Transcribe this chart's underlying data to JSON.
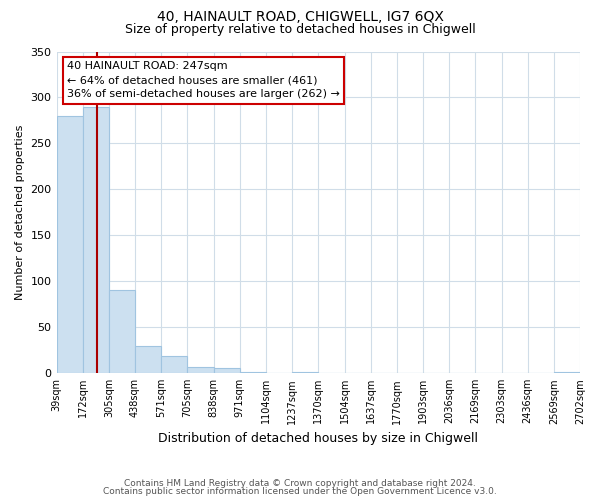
{
  "title": "40, HAINAULT ROAD, CHIGWELL, IG7 6QX",
  "subtitle": "Size of property relative to detached houses in Chigwell",
  "xlabel": "Distribution of detached houses by size in Chigwell",
  "ylabel": "Number of detached properties",
  "bar_values": [
    280,
    290,
    90,
    30,
    19,
    7,
    6,
    1,
    0,
    1,
    0,
    0,
    0,
    0,
    0,
    0,
    0,
    0,
    0,
    1
  ],
  "bar_edges": [
    39,
    172,
    305,
    438,
    571,
    705,
    838,
    971,
    1104,
    1237,
    1370,
    1504,
    1637,
    1770,
    1903,
    2036,
    2169,
    2303,
    2436,
    2569,
    2702
  ],
  "tick_labels": [
    "39sqm",
    "172sqm",
    "305sqm",
    "438sqm",
    "571sqm",
    "705sqm",
    "838sqm",
    "971sqm",
    "1104sqm",
    "1237sqm",
    "1370sqm",
    "1504sqm",
    "1637sqm",
    "1770sqm",
    "1903sqm",
    "2036sqm",
    "2169sqm",
    "2303sqm",
    "2436sqm",
    "2569sqm",
    "2702sqm"
  ],
  "bar_facecolor": "#cce0f0",
  "bar_edgecolor": "#a0c4e0",
  "grid_color": "#d0dde8",
  "property_line_x": 247,
  "property_line_color": "#aa0000",
  "annotation_title": "40 HAINAULT ROAD: 247sqm",
  "annotation_line1": "← 64% of detached houses are smaller (461)",
  "annotation_line2": "36% of semi-detached houses are larger (262) →",
  "annotation_box_facecolor": "#ffffff",
  "annotation_border_color": "#cc0000",
  "ylim": [
    0,
    350
  ],
  "yticks": [
    0,
    50,
    100,
    150,
    200,
    250,
    300,
    350
  ],
  "footer1": "Contains HM Land Registry data © Crown copyright and database right 2024.",
  "footer2": "Contains public sector information licensed under the Open Government Licence v3.0.",
  "background_color": "#ffffff",
  "plot_background_color": "#ffffff",
  "title_fontsize": 10,
  "subtitle_fontsize": 9,
  "ylabel_fontsize": 8,
  "xlabel_fontsize": 9,
  "tick_fontsize": 7,
  "annotation_fontsize": 8,
  "footer_fontsize": 6.5
}
